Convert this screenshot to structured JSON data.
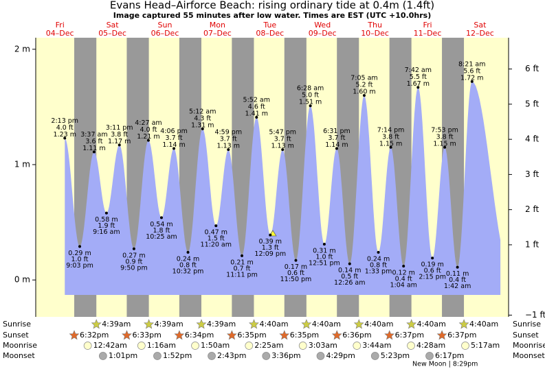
{
  "chart_data": {
    "type": "tide",
    "title": "Evans Head–Airforce Beach: rising  ordinary tide at 0.4m (1.4ft)",
    "subtitle": "Image captured 55 minutes after low water. Times are EST (UTC +10.0hrs)",
    "days": [
      {
        "name": "Fri",
        "date": "04–Dec"
      },
      {
        "name": "Sat",
        "date": "05–Dec"
      },
      {
        "name": "Sun",
        "date": "06–Dec"
      },
      {
        "name": "Mon",
        "date": "07–Dec"
      },
      {
        "name": "Tue",
        "date": "08–Dec"
      },
      {
        "name": "Wed",
        "date": "09–Dec"
      },
      {
        "name": "Thu",
        "date": "10–Dec"
      },
      {
        "name": "Fri",
        "date": "11–Dec"
      },
      {
        "name": "Sat",
        "date": "12–Dec"
      }
    ],
    "ylim": [
      -0.32,
      2.1
    ],
    "yticks": [
      {
        "value": 0,
        "label": "0 m"
      },
      {
        "value": 1,
        "label": "1 m"
      },
      {
        "value": 2,
        "label": "2 m"
      }
    ],
    "y2lim": [
      -1.05,
      6.89
    ],
    "y2ticks": [
      {
        "value": -1,
        "label": "−1 ft"
      },
      {
        "value": 1,
        "label": "1 ft"
      },
      {
        "value": 2,
        "label": "2 ft"
      },
      {
        "value": 3,
        "label": "3 ft"
      },
      {
        "value": 4,
        "label": "4 ft"
      },
      {
        "value": 5,
        "label": "5 ft"
      },
      {
        "value": 6,
        "label": "6 ft"
      }
    ],
    "color": "#a3acf7",
    "extremes": {
      "times": [
        "2:13 pm",
        "9:03 pm",
        "3:37 am",
        "9:16 am",
        "3:11 pm",
        "9:50 pm",
        "4:27 am",
        "10:25 am",
        "4:06 pm",
        "10:32 pm",
        "5:12 am",
        "11:20 am",
        "4:59 pm",
        "11:11 pm",
        "5:52 am",
        "12:09 pm",
        "5:47 pm",
        "11:50 pm",
        "6:28 am",
        "12:51 pm",
        "6:31 pm",
        "12:26 am",
        "7:05 am",
        "1:33 pm",
        "7:14 pm",
        "1:04 am",
        "7:42 am",
        "2:15 pm",
        "7:53 pm",
        "1:42 am",
        "8:21 am"
      ],
      "feet_labels": [
        "4.0 ft",
        "1.0 ft",
        "3.6 ft",
        "1.9 ft",
        "3.8 ft",
        "0.9 ft",
        "4.0 ft",
        "1.8 ft",
        "3.7 ft",
        "0.8 ft",
        "4.3 ft",
        "1.5 ft",
        "3.7 ft",
        "0.7 ft",
        "4.6 ft",
        "1.3 ft",
        "3.7 ft",
        "0.6 ft",
        "5.0 ft",
        "1.0 ft",
        "3.7 ft",
        "0.5 ft",
        "5.2 ft",
        "0.8 ft",
        "3.8 ft",
        "0.4 ft",
        "5.5 ft",
        "0.6 ft",
        "3.8 ft",
        "0.4 ft",
        "5.6 ft"
      ],
      "values": [
        1.23,
        0.29,
        1.11,
        0.58,
        1.17,
        0.27,
        1.21,
        0.54,
        1.14,
        0.24,
        1.31,
        0.47,
        1.13,
        0.21,
        1.41,
        0.39,
        1.13,
        0.17,
        1.51,
        0.31,
        1.14,
        0.14,
        1.6,
        0.24,
        1.15,
        0.12,
        1.67,
        0.19,
        1.15,
        0.11,
        1.72
      ],
      "value_labels": [
        "1.23 m",
        "0.29 m",
        "1.11 m",
        "0.58 m",
        "1.17 m",
        "0.27 m",
        "1.21 m",
        "0.54 m",
        "1.14 m",
        "0.24 m",
        "1.31 m",
        "0.47 m",
        "1.13 m",
        "0.21 m",
        "1.41 m",
        "0.39 m",
        "1.13 m",
        "0.17 m",
        "1.51 m",
        "0.31 m",
        "1.14 m",
        "0.14 m",
        "1.60 m",
        "0.24 m",
        "1.15 m",
        "0.12 m",
        "1.67 m",
        "0.19 m",
        "1.15 m",
        "0.11 m",
        "1.72 m"
      ]
    },
    "rows": [
      {
        "name": "Sunrise",
        "times": [
          null,
          "4:39am",
          "4:39am",
          "4:39am",
          "4:40am",
          "4:40am",
          "4:40am",
          "4:40am",
          "4:40am"
        ]
      },
      {
        "name": "Sunset",
        "times": [
          "6:32pm",
          "6:33pm",
          "6:34pm",
          "6:35pm",
          "6:35pm",
          "6:36pm",
          "6:37pm",
          "6:37pm",
          null
        ]
      },
      {
        "name": "Moonrise",
        "times": [
          null,
          "12:42am",
          "1:16am",
          "1:50am",
          "2:25am",
          "3:03am",
          "3:44am",
          "4:28am",
          "5:17am"
        ]
      },
      {
        "name": "Moonset",
        "times": [
          null,
          "1:01pm",
          "1:52pm",
          "2:43pm",
          "3:36pm",
          "4:29pm",
          "5:23pm",
          "6:17pm",
          null
        ]
      }
    ],
    "moon_phase": "New Moon | 8:29pm"
  }
}
